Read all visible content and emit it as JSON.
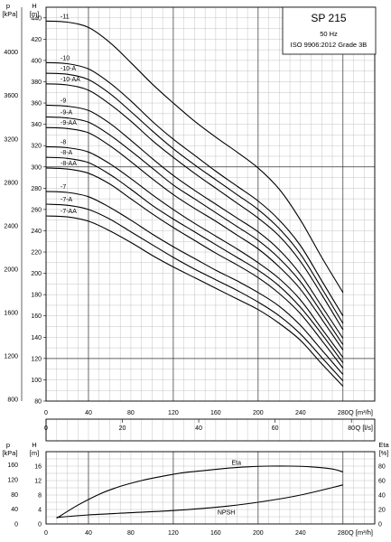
{
  "chart_data": [
    {
      "type": "line",
      "title_box": {
        "model": "SP 215",
        "frequency": "50 Hz",
        "standard": "ISO 9906:2012 Grade 3B"
      },
      "left_outer_label": "p",
      "left_outer_unit": "[kPa]",
      "left_inner_label": "H",
      "left_inner_unit": "[m]",
      "x_axis_label": "Q [m³/h]",
      "x2_axis_label": "Q [l/s]",
      "xlim": [
        0,
        310
      ],
      "ylim": [
        80,
        450
      ],
      "x_ticks": [
        0,
        40,
        80,
        120,
        160,
        200,
        240,
        280
      ],
      "x2_ticks": [
        0,
        20,
        40,
        60,
        80
      ],
      "h_ticks": [
        80,
        100,
        120,
        140,
        160,
        180,
        200,
        220,
        240,
        260,
        280,
        300,
        320,
        340,
        360,
        380,
        400,
        420,
        440
      ],
      "p_ticks": [
        800,
        1200,
        1600,
        2000,
        2400,
        2800,
        3200,
        3600,
        4000
      ],
      "grid": true,
      "x": [
        0,
        20,
        40,
        60,
        80,
        100,
        120,
        140,
        160,
        180,
        200,
        220,
        240,
        260,
        280
      ],
      "series": [
        {
          "name": "-11",
          "values": [
            437,
            436,
            431,
            417,
            398,
            378,
            360,
            343,
            328,
            314,
            299,
            279,
            250,
            215,
            182
          ]
        },
        {
          "name": "-10",
          "values": [
            398,
            397,
            392,
            379,
            362,
            343,
            326,
            311,
            296,
            282,
            268,
            250,
            226,
            193,
            160
          ]
        },
        {
          "name": "-10-A",
          "values": [
            388,
            387,
            382,
            369,
            352,
            334,
            317,
            302,
            288,
            274,
            260,
            242,
            218,
            186,
            153
          ]
        },
        {
          "name": "-10-AA",
          "values": [
            378,
            377,
            372,
            359,
            343,
            325,
            309,
            294,
            280,
            266,
            252,
            235,
            211,
            180,
            147
          ]
        },
        {
          "name": "-9",
          "values": [
            358,
            357,
            353,
            341,
            325,
            308,
            292,
            278,
            265,
            252,
            239,
            222,
            199,
            169,
            139
          ]
        },
        {
          "name": "-9-A",
          "values": [
            347,
            346,
            342,
            330,
            315,
            299,
            283,
            270,
            257,
            244,
            231,
            214,
            192,
            163,
            133
          ]
        },
        {
          "name": "-9-AA",
          "values": [
            337,
            336,
            332,
            320,
            305,
            289,
            274,
            261,
            249,
            236,
            223,
            206,
            185,
            157,
            128
          ]
        },
        {
          "name": "-8",
          "values": [
            319,
            318,
            314,
            303,
            289,
            274,
            260,
            247,
            235,
            223,
            210,
            195,
            175,
            148,
            121
          ]
        },
        {
          "name": "-8-A",
          "values": [
            309,
            308,
            304,
            293,
            279,
            264,
            251,
            239,
            227,
            215,
            203,
            188,
            168,
            143,
            116
          ]
        },
        {
          "name": "-8-AA",
          "values": [
            299,
            298,
            294,
            284,
            270,
            256,
            243,
            231,
            219,
            208,
            196,
            181,
            162,
            137,
            111
          ]
        },
        {
          "name": "-7",
          "values": [
            277,
            276,
            272,
            262,
            250,
            237,
            225,
            214,
            203,
            193,
            182,
            169,
            151,
            128,
            105
          ]
        },
        {
          "name": "-7-A",
          "values": [
            265,
            264,
            260,
            251,
            239,
            227,
            215,
            204,
            194,
            184,
            173,
            160,
            143,
            121,
            99
          ]
        },
        {
          "name": "-7-AA",
          "values": [
            254,
            253,
            249,
            240,
            229,
            217,
            206,
            196,
            186,
            176,
            166,
            153,
            137,
            115,
            94
          ]
        }
      ]
    },
    {
      "type": "line",
      "left_outer_label": "p",
      "left_outer_unit": "[kPa]",
      "left_inner_label": "H",
      "left_inner_unit": "[m]",
      "right_label": "Eta",
      "right_unit": "[%]",
      "x_axis_label": "Q [m³/h]",
      "xlim": [
        0,
        310
      ],
      "ylim": [
        0,
        20
      ],
      "x_ticks": [
        0,
        40,
        80,
        120,
        160,
        200,
        240,
        280
      ],
      "h_ticks": [
        0,
        4,
        8,
        12,
        16
      ],
      "p_ticks": [
        0,
        40,
        80,
        120,
        160
      ],
      "eta_ticks": [
        0,
        20,
        40,
        60,
        80
      ],
      "grid": true,
      "series": [
        {
          "name": "Eta",
          "axis": "eta",
          "x": [
            10,
            30,
            50,
            70,
            90,
            110,
            130,
            150,
            170,
            190,
            210,
            230,
            250,
            270,
            280
          ],
          "values": [
            8,
            26,
            41,
            52,
            60,
            66,
            71,
            74,
            77,
            79,
            80,
            80,
            79,
            76,
            72
          ]
        },
        {
          "name": "NPSH",
          "axis": "h",
          "x": [
            10,
            40,
            80,
            120,
            160,
            200,
            240,
            280
          ],
          "values": [
            1.8,
            2.5,
            3.1,
            3.7,
            4.6,
            6.0,
            8.0,
            10.8
          ]
        }
      ]
    }
  ]
}
